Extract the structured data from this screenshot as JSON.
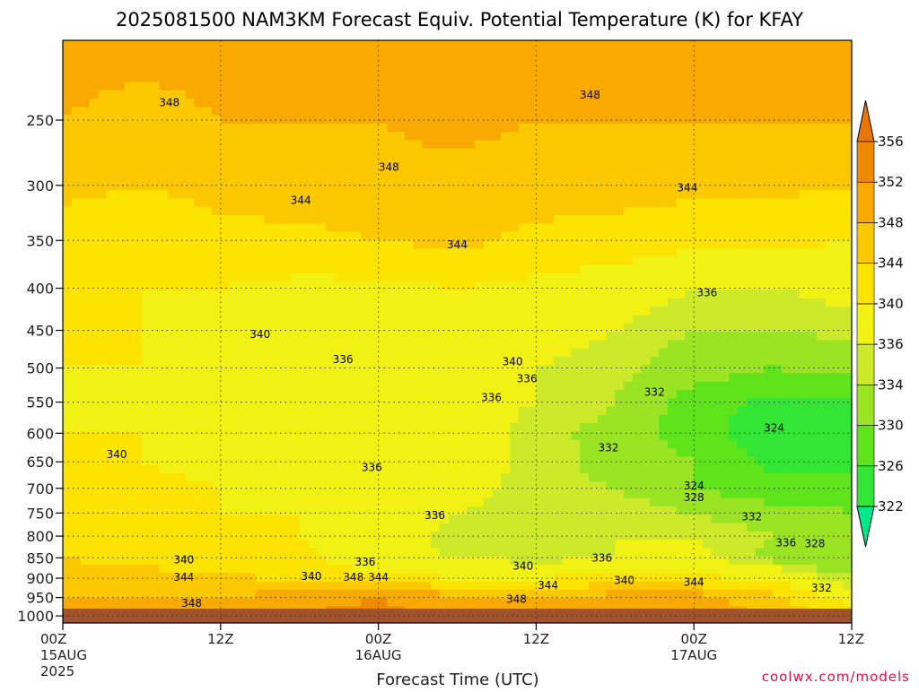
{
  "chart_data": {
    "type": "heatmap",
    "title": "2025081500 NAM3KM Forecast Equiv. Potential Temperature (K) for KFAY",
    "xlabel": "Forecast Time (UTC)",
    "ylabel": "",
    "x_ticks": [
      {
        "hour": 0,
        "lines": [
          "00Z",
          "15AUG",
          "2025"
        ]
      },
      {
        "hour": 12,
        "lines": [
          "12Z"
        ]
      },
      {
        "hour": 24,
        "lines": [
          "00Z",
          "16AUG"
        ]
      },
      {
        "hour": 36,
        "lines": [
          "12Z"
        ]
      },
      {
        "hour": 48,
        "lines": [
          "00Z",
          "17AUG"
        ]
      },
      {
        "hour": 60,
        "lines": [
          "12Z"
        ]
      }
    ],
    "xlim": [
      0,
      60
    ],
    "y_ticks": [
      250,
      300,
      350,
      400,
      450,
      500,
      550,
      600,
      650,
      700,
      750,
      800,
      850,
      900,
      950,
      1000
    ],
    "ylim": [
      200,
      1020
    ],
    "y_scale": "log-pressure",
    "grid": true,
    "legend_placement": "right",
    "colorbar": {
      "levels": [
        322,
        326,
        330,
        334,
        336,
        340,
        344,
        348,
        352,
        356
      ],
      "colors": [
        "#00e88a",
        "#33e534",
        "#5fe31b",
        "#9be424",
        "#cdea2a",
        "#f1f113",
        "#fde400",
        "#fcc900",
        "#f9aa00",
        "#ee8a00",
        "#e8760a"
      ]
    },
    "ground_color": "#a0522d",
    "profile_pressures": [
      200,
      250,
      300,
      350,
      400,
      450,
      500,
      550,
      600,
      650,
      700,
      750,
      800,
      850,
      900,
      950,
      1000
    ],
    "profile_hours": [
      0,
      6,
      12,
      18,
      24,
      30,
      36,
      42,
      48,
      54,
      60
    ],
    "values": [
      [
        349,
        349,
        349,
        349,
        350,
        349,
        349,
        349,
        349,
        349,
        349
      ],
      [
        348,
        347,
        348,
        348,
        348,
        349,
        348,
        348,
        348,
        348,
        348
      ],
      [
        345,
        344,
        345,
        346,
        347,
        347,
        346,
        346,
        345,
        345,
        344
      ],
      [
        342,
        342,
        343,
        343,
        344,
        345,
        343,
        342,
        341,
        341,
        340
      ],
      [
        341,
        340,
        340,
        339,
        339,
        340,
        339,
        338,
        336,
        336,
        337
      ],
      [
        340,
        340,
        339,
        337,
        337,
        338,
        337,
        336,
        334,
        334,
        335
      ],
      [
        340,
        340,
        339,
        337,
        337,
        337,
        336,
        335,
        332,
        330,
        331
      ],
      [
        340,
        339,
        339,
        338,
        338,
        337,
        336,
        334,
        328,
        325,
        326
      ],
      [
        340,
        340,
        339,
        338,
        339,
        338,
        335,
        333,
        327,
        324,
        325
      ],
      [
        341,
        340,
        339,
        339,
        339,
        338,
        335,
        333,
        330,
        325,
        325
      ],
      [
        341,
        341,
        340,
        339,
        338,
        337,
        335,
        334,
        330,
        327,
        328
      ],
      [
        342,
        341,
        340,
        340,
        338,
        336,
        335,
        336,
        334,
        332,
        330
      ],
      [
        343,
        342,
        341,
        340,
        338,
        335,
        334,
        336,
        336,
        334,
        330
      ],
      [
        344,
        343,
        342,
        341,
        337,
        336,
        335,
        336,
        337,
        333,
        330
      ],
      [
        346,
        345,
        345,
        343,
        341,
        340,
        340,
        341,
        341,
        339,
        334
      ],
      [
        348,
        348,
        348,
        350,
        352,
        349,
        348,
        350,
        350,
        345,
        338
      ],
      [
        348,
        348,
        349,
        352,
        354,
        350,
        349,
        351,
        351,
        347,
        342
      ]
    ],
    "contour_labels": [
      {
        "text": "348",
        "hour": 8.1,
        "p": 238
      },
      {
        "text": "348",
        "hour": 40.1,
        "p": 233
      },
      {
        "text": "348",
        "hour": 24.8,
        "p": 285
      },
      {
        "text": "344",
        "hour": 18.1,
        "p": 313
      },
      {
        "text": "344",
        "hour": 47.5,
        "p": 302
      },
      {
        "text": "344",
        "hour": 30.0,
        "p": 354
      },
      {
        "text": "336",
        "hour": 49.0,
        "p": 405
      },
      {
        "text": "340",
        "hour": 15.0,
        "p": 455
      },
      {
        "text": "336",
        "hour": 21.3,
        "p": 488
      },
      {
        "text": "340",
        "hour": 34.2,
        "p": 491
      },
      {
        "text": "336",
        "hour": 35.3,
        "p": 515
      },
      {
        "text": "336",
        "hour": 32.6,
        "p": 543
      },
      {
        "text": "332",
        "hour": 45.0,
        "p": 535
      },
      {
        "text": "324",
        "hour": 54.1,
        "p": 591
      },
      {
        "text": "340",
        "hour": 4.1,
        "p": 637
      },
      {
        "text": "332",
        "hour": 41.5,
        "p": 625
      },
      {
        "text": "336",
        "hour": 23.5,
        "p": 660
      },
      {
        "text": "324",
        "hour": 48.0,
        "p": 695
      },
      {
        "text": "328",
        "hour": 48.0,
        "p": 718
      },
      {
        "text": "332",
        "hour": 52.4,
        "p": 758
      },
      {
        "text": "336",
        "hour": 28.3,
        "p": 755
      },
      {
        "text": "336",
        "hour": 55.0,
        "p": 815
      },
      {
        "text": "328",
        "hour": 57.2,
        "p": 817
      },
      {
        "text": "340",
        "hour": 9.2,
        "p": 855
      },
      {
        "text": "336",
        "hour": 23.0,
        "p": 860
      },
      {
        "text": "336",
        "hour": 41.0,
        "p": 850
      },
      {
        "text": "340",
        "hour": 35.0,
        "p": 870
      },
      {
        "text": "344",
        "hour": 9.2,
        "p": 898
      },
      {
        "text": "340",
        "hour": 18.9,
        "p": 895
      },
      {
        "text": "348",
        "hour": 22.1,
        "p": 898
      },
      {
        "text": "344",
        "hour": 24.0,
        "p": 898
      },
      {
        "text": "344",
        "hour": 36.9,
        "p": 918
      },
      {
        "text": "340",
        "hour": 42.7,
        "p": 905
      },
      {
        "text": "344",
        "hour": 48.0,
        "p": 910
      },
      {
        "text": "332",
        "hour": 57.7,
        "p": 925
      },
      {
        "text": "348",
        "hour": 9.8,
        "p": 965
      },
      {
        "text": "348",
        "hour": 34.5,
        "p": 955
      }
    ]
  },
  "credit": "coolwx.com/models"
}
